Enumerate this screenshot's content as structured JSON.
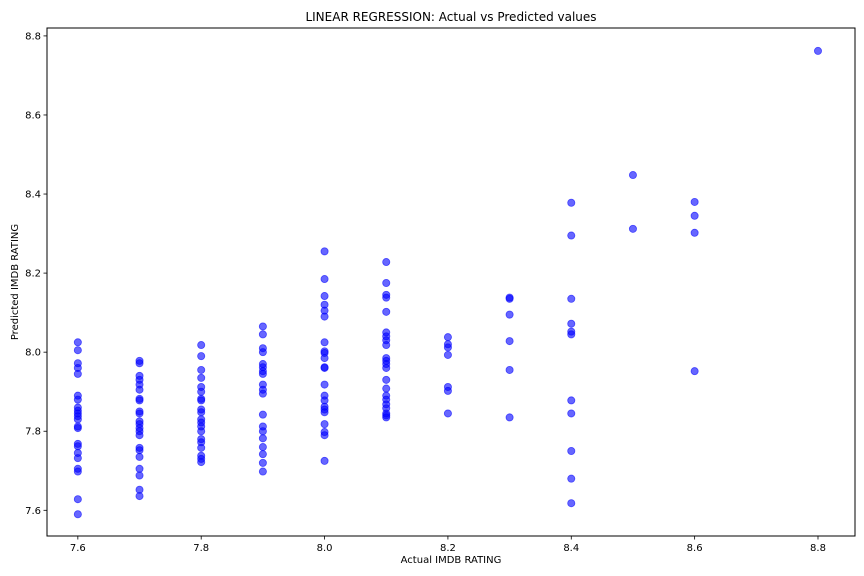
{
  "chart_data": {
    "type": "scatter",
    "title": "LINEAR REGRESSION: Actual vs Predicted values",
    "xlabel": "Actual IMDB RATING",
    "ylabel": "Predicted IMDB RATING",
    "xlim": [
      7.55,
      8.86
    ],
    "ylim": [
      7.535,
      8.82
    ],
    "xticks": [
      "7.6",
      "7.8",
      "8.0",
      "8.2",
      "8.4",
      "8.6",
      "8.8"
    ],
    "yticks": [
      "7.6",
      "7.8",
      "8.0",
      "8.2",
      "8.4",
      "8.6",
      "8.8"
    ],
    "grid": false,
    "marker_color": "#0000ff",
    "marker_alpha": 0.6,
    "series": [
      {
        "points": [
          [
            7.6,
            8.025
          ],
          [
            7.6,
            8.005
          ],
          [
            7.6,
            7.972
          ],
          [
            7.6,
            7.96
          ],
          [
            7.6,
            7.945
          ],
          [
            7.6,
            7.89
          ],
          [
            7.6,
            7.88
          ],
          [
            7.6,
            7.86
          ],
          [
            7.6,
            7.852
          ],
          [
            7.6,
            7.845
          ],
          [
            7.6,
            7.838
          ],
          [
            7.6,
            7.83
          ],
          [
            7.6,
            7.812
          ],
          [
            7.6,
            7.808
          ],
          [
            7.6,
            7.768
          ],
          [
            7.6,
            7.762
          ],
          [
            7.6,
            7.745
          ],
          [
            7.6,
            7.732
          ],
          [
            7.6,
            7.705
          ],
          [
            7.6,
            7.698
          ],
          [
            7.6,
            7.628
          ],
          [
            7.6,
            7.59
          ],
          [
            7.7,
            7.978
          ],
          [
            7.7,
            7.972
          ],
          [
            7.7,
            7.94
          ],
          [
            7.7,
            7.93
          ],
          [
            7.7,
            7.918
          ],
          [
            7.7,
            7.905
          ],
          [
            7.7,
            7.882
          ],
          [
            7.7,
            7.878
          ],
          [
            7.7,
            7.85
          ],
          [
            7.7,
            7.845
          ],
          [
            7.7,
            7.825
          ],
          [
            7.7,
            7.818
          ],
          [
            7.7,
            7.808
          ],
          [
            7.7,
            7.8
          ],
          [
            7.7,
            7.79
          ],
          [
            7.7,
            7.758
          ],
          [
            7.7,
            7.752
          ],
          [
            7.7,
            7.735
          ],
          [
            7.7,
            7.705
          ],
          [
            7.7,
            7.688
          ],
          [
            7.7,
            7.652
          ],
          [
            7.7,
            7.636
          ],
          [
            7.8,
            8.018
          ],
          [
            7.8,
            7.99
          ],
          [
            7.8,
            7.955
          ],
          [
            7.8,
            7.935
          ],
          [
            7.8,
            7.912
          ],
          [
            7.8,
            7.9
          ],
          [
            7.8,
            7.882
          ],
          [
            7.8,
            7.878
          ],
          [
            7.8,
            7.855
          ],
          [
            7.8,
            7.848
          ],
          [
            7.8,
            7.83
          ],
          [
            7.8,
            7.822
          ],
          [
            7.8,
            7.812
          ],
          [
            7.8,
            7.8
          ],
          [
            7.8,
            7.78
          ],
          [
            7.8,
            7.772
          ],
          [
            7.8,
            7.758
          ],
          [
            7.8,
            7.738
          ],
          [
            7.8,
            7.73
          ],
          [
            7.8,
            7.722
          ],
          [
            7.9,
            8.065
          ],
          [
            7.9,
            8.045
          ],
          [
            7.9,
            8.01
          ],
          [
            7.9,
            8.0
          ],
          [
            7.9,
            7.97
          ],
          [
            7.9,
            7.962
          ],
          [
            7.9,
            7.952
          ],
          [
            7.9,
            7.945
          ],
          [
            7.9,
            7.918
          ],
          [
            7.9,
            7.905
          ],
          [
            7.9,
            7.895
          ],
          [
            7.9,
            7.842
          ],
          [
            7.9,
            7.812
          ],
          [
            7.9,
            7.8
          ],
          [
            7.9,
            7.782
          ],
          [
            7.9,
            7.76
          ],
          [
            7.9,
            7.742
          ],
          [
            7.9,
            7.72
          ],
          [
            7.9,
            7.698
          ],
          [
            8.0,
            8.255
          ],
          [
            8.0,
            8.185
          ],
          [
            8.0,
            8.142
          ],
          [
            8.0,
            8.12
          ],
          [
            8.0,
            8.105
          ],
          [
            8.0,
            8.09
          ],
          [
            8.0,
            8.025
          ],
          [
            8.0,
            8.002
          ],
          [
            8.0,
            7.998
          ],
          [
            8.0,
            7.985
          ],
          [
            8.0,
            7.962
          ],
          [
            8.0,
            7.96
          ],
          [
            8.0,
            7.918
          ],
          [
            8.0,
            7.89
          ],
          [
            8.0,
            7.878
          ],
          [
            8.0,
            7.862
          ],
          [
            8.0,
            7.855
          ],
          [
            8.0,
            7.848
          ],
          [
            8.0,
            7.818
          ],
          [
            8.0,
            7.798
          ],
          [
            8.0,
            7.79
          ],
          [
            8.0,
            7.725
          ],
          [
            8.1,
            8.228
          ],
          [
            8.1,
            8.175
          ],
          [
            8.1,
            8.145
          ],
          [
            8.1,
            8.138
          ],
          [
            8.1,
            8.102
          ],
          [
            8.1,
            8.05
          ],
          [
            8.1,
            8.04
          ],
          [
            8.1,
            8.03
          ],
          [
            8.1,
            8.018
          ],
          [
            8.1,
            7.985
          ],
          [
            8.1,
            7.978
          ],
          [
            8.1,
            7.97
          ],
          [
            8.1,
            7.96
          ],
          [
            8.1,
            7.93
          ],
          [
            8.1,
            7.908
          ],
          [
            8.1,
            7.89
          ],
          [
            8.1,
            7.88
          ],
          [
            8.1,
            7.868
          ],
          [
            8.1,
            7.858
          ],
          [
            8.1,
            7.845
          ],
          [
            8.1,
            7.84
          ],
          [
            8.1,
            7.835
          ],
          [
            8.2,
            8.038
          ],
          [
            8.2,
            8.02
          ],
          [
            8.2,
            8.012
          ],
          [
            8.2,
            7.993
          ],
          [
            8.2,
            7.912
          ],
          [
            8.2,
            7.902
          ],
          [
            8.2,
            7.845
          ],
          [
            8.3,
            8.138
          ],
          [
            8.3,
            8.135
          ],
          [
            8.3,
            8.095
          ],
          [
            8.3,
            8.028
          ],
          [
            8.3,
            7.955
          ],
          [
            8.3,
            7.835
          ],
          [
            8.4,
            8.378
          ],
          [
            8.4,
            8.295
          ],
          [
            8.4,
            8.135
          ],
          [
            8.4,
            8.072
          ],
          [
            8.4,
            8.052
          ],
          [
            8.4,
            8.045
          ],
          [
            8.4,
            7.878
          ],
          [
            8.4,
            7.845
          ],
          [
            8.4,
            7.75
          ],
          [
            8.4,
            7.68
          ],
          [
            8.4,
            7.618
          ],
          [
            8.5,
            8.448
          ],
          [
            8.5,
            8.312
          ],
          [
            8.6,
            8.38
          ],
          [
            8.6,
            8.345
          ],
          [
            8.6,
            8.302
          ],
          [
            8.6,
            7.952
          ],
          [
            8.8,
            8.762
          ]
        ]
      }
    ]
  }
}
